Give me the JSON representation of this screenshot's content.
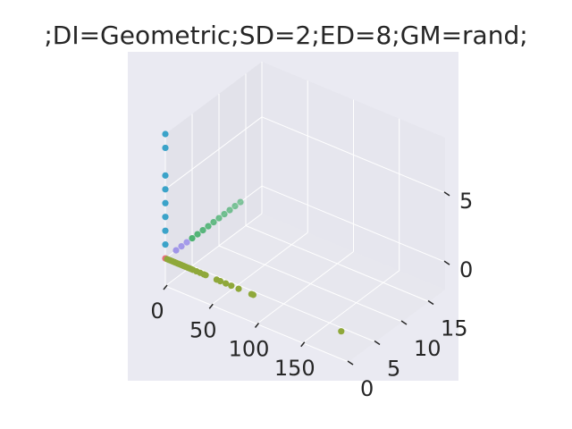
{
  "chart_data": {
    "type": "scatter",
    "projection": "3d",
    "title": ";DI=Geometric;SD=2;ED=8;GM=rand;",
    "axes": {
      "x": {
        "range": [
          0,
          200
        ],
        "ticks": [
          "0",
          "50",
          "100",
          "150"
        ],
        "label": ""
      },
      "y": {
        "range": [
          0,
          18
        ],
        "ticks": [
          "0",
          "5",
          "10",
          "15"
        ],
        "label": ""
      },
      "z": {
        "range": [
          -2,
          9
        ],
        "ticks": [
          "0",
          "5"
        ],
        "label": ""
      }
    },
    "grid": true,
    "legend": "none",
    "colors": {
      "figure_background": "#ffffff",
      "axes_background": "#eaeaf2",
      "pane_left": "#e2e2ea",
      "pane_back": "#e6e6ee",
      "pane_floor": "#e7e7ee",
      "grid": "#ffffff",
      "text": "#262626"
    },
    "series": [
      {
        "color": "#e8707e",
        "points": [
          [
            0,
            0,
            0
          ]
        ]
      },
      {
        "color": "#3ba3c9",
        "points": [
          [
            0,
            0,
            1
          ],
          [
            0,
            0,
            2
          ],
          [
            0,
            0,
            3
          ],
          [
            0,
            0,
            4
          ],
          [
            0,
            0,
            5
          ],
          [
            0,
            0,
            6
          ],
          [
            0,
            0,
            8
          ],
          [
            0,
            0,
            9
          ]
        ]
      },
      {
        "color": "#9b8fe8",
        "points": [
          [
            0,
            2,
            0
          ],
          [
            0,
            3,
            0
          ],
          [
            0,
            4,
            0
          ]
        ]
      },
      {
        "color": "#31a85c",
        "points": [
          [
            0,
            5,
            0
          ],
          [
            0,
            6,
            0
          ],
          [
            0,
            7,
            0
          ],
          [
            0,
            8,
            0
          ],
          [
            0,
            9,
            0
          ],
          [
            0,
            10,
            0
          ],
          [
            0,
            11,
            0
          ],
          [
            0,
            12,
            0
          ],
          [
            0,
            13,
            0
          ],
          [
            0,
            14,
            0
          ]
        ]
      },
      {
        "color": "#8fa83a",
        "points": [
          [
            2,
            0,
            0
          ],
          [
            4,
            0,
            0
          ],
          [
            6,
            0,
            0
          ],
          [
            8,
            0,
            0
          ],
          [
            10,
            0,
            0
          ],
          [
            12,
            0,
            0
          ],
          [
            14,
            0,
            0
          ],
          [
            16,
            0,
            0
          ],
          [
            18,
            0,
            0
          ],
          [
            20,
            0,
            0
          ],
          [
            22,
            0,
            0
          ],
          [
            24,
            0,
            0
          ],
          [
            26,
            0,
            0
          ],
          [
            28,
            0,
            0
          ],
          [
            30,
            0,
            0
          ],
          [
            34,
            0,
            0
          ],
          [
            38,
            0,
            0
          ],
          [
            42,
            0,
            0
          ],
          [
            44,
            0,
            0
          ],
          [
            56,
            0,
            0
          ],
          [
            60,
            0,
            0
          ],
          [
            66,
            0,
            0
          ],
          [
            72,
            0,
            0
          ],
          [
            80,
            0,
            0
          ],
          [
            94,
            0,
            0
          ],
          [
            96,
            0,
            0
          ],
          [
            192,
            0,
            0
          ]
        ]
      }
    ]
  }
}
